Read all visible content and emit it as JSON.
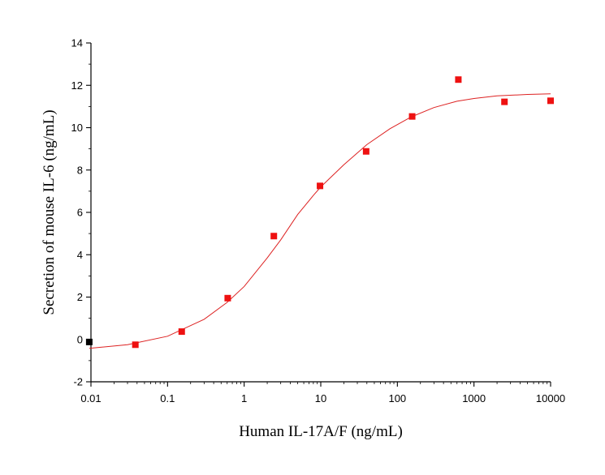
{
  "chart_data": {
    "type": "scatter",
    "xlabel": "Human IL-17A/F (ng/mL)",
    "ylabel": "Secretion of mouse IL-6 (ng/mL)",
    "x_scale": "log",
    "xlim": [
      0.01,
      10000
    ],
    "ylim": [
      -2,
      14
    ],
    "x_ticks": [
      0.01,
      0.1,
      1,
      10,
      100,
      1000,
      10000
    ],
    "x_tick_labels": [
      "0.01",
      "0.1",
      "1",
      "10",
      "100",
      "1000",
      "10000"
    ],
    "y_ticks": [
      -2,
      0,
      2,
      4,
      6,
      8,
      10,
      12,
      14
    ],
    "y_tick_labels": [
      "-2",
      "0",
      "2",
      "4",
      "6",
      "8",
      "10",
      "12",
      "14"
    ],
    "grid": false,
    "series": [
      {
        "type": "scatter",
        "color": "#000000",
        "x": [
          0.0095
        ],
        "y": [
          -0.12
        ]
      },
      {
        "type": "scatter",
        "color": "#ee1111",
        "x": [
          0.038,
          0.153,
          0.61,
          2.44,
          9.77,
          39.1,
          156,
          625,
          2500,
          10000
        ],
        "y": [
          -0.25,
          0.37,
          1.95,
          4.88,
          7.25,
          8.88,
          10.53,
          12.27,
          11.22,
          11.27
        ]
      },
      {
        "type": "line",
        "color": "#dd2222",
        "x": [
          0.0095,
          0.03,
          0.1,
          0.3,
          0.6,
          1,
          2,
          3,
          5,
          8,
          10,
          20,
          40,
          80,
          150,
          300,
          600,
          1000,
          2000,
          5000,
          10000
        ],
        "y": [
          -0.42,
          -0.25,
          0.15,
          0.95,
          1.75,
          2.5,
          3.85,
          4.7,
          5.9,
          6.8,
          7.2,
          8.25,
          9.2,
          9.95,
          10.5,
          10.95,
          11.25,
          11.38,
          11.5,
          11.57,
          11.6
        ]
      }
    ]
  }
}
